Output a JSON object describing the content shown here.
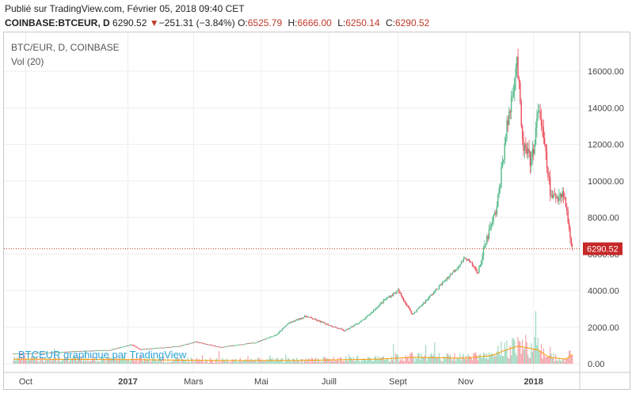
{
  "header": {
    "published": "Publié sur TradingView.com, Février 05, 2018 09:40 CET",
    "symbol": "COINBASE:BTCEUR, D",
    "last": "6290.52",
    "change_icon": "triangle-down-icon",
    "change": "−251.31 (−3.84%)",
    "o_label": "O:",
    "o": "6525.79",
    "h_label": "H:",
    "h": "6666.00",
    "l_label": "L:",
    "l": "6250.14",
    "c_label": "C:",
    "c": "6290.52"
  },
  "legend": {
    "title": "BTC/EUR, D, COINBASE",
    "volume": "Vol (20)"
  },
  "watermark": "BTCEUR graphique par TradingView",
  "colors": {
    "up": "#53b987",
    "down": "#eb4d5c",
    "vol_up": "#9ed9bf",
    "vol_down": "#f3a3aa",
    "ma": "#ff9800",
    "last_line": "#c0392b",
    "last_label_bg": "#c62828",
    "grid": "#eeeeee"
  },
  "chart_data": {
    "type": "candlestick",
    "price_axis_ticks": [
      "16000.00",
      "14000.00",
      "12000.00",
      "10000.00",
      "8000.00",
      "6000.00",
      "4000.00",
      "2000.00",
      "0.00"
    ],
    "price_ylim": [
      0,
      17000
    ],
    "time_axis_ticks": [
      {
        "label": "Oct",
        "bold": false
      },
      {
        "label": "2017",
        "bold": true
      },
      {
        "label": "Mars",
        "bold": false
      },
      {
        "label": "Mai",
        "bold": false
      },
      {
        "label": "Juill",
        "bold": false
      },
      {
        "label": "Sept",
        "bold": false
      },
      {
        "label": "Nov",
        "bold": false
      },
      {
        "label": "2018",
        "bold": true
      }
    ],
    "last_price_label": "6290.52",
    "last_price": 6290.52,
    "price_series": [
      [
        "2016-09-20",
        550
      ],
      [
        "2016-10-15",
        580
      ],
      [
        "2016-11-15",
        680
      ],
      [
        "2016-12-15",
        740
      ],
      [
        "2017-01-04",
        1050
      ],
      [
        "2017-01-12",
        780
      ],
      [
        "2017-02-15",
        950
      ],
      [
        "2017-03-03",
        1200
      ],
      [
        "2017-03-25",
        900
      ],
      [
        "2017-04-25",
        1150
      ],
      [
        "2017-05-15",
        1600
      ],
      [
        "2017-05-25",
        2200
      ],
      [
        "2017-06-10",
        2600
      ],
      [
        "2017-06-25",
        2250
      ],
      [
        "2017-07-15",
        1800
      ],
      [
        "2017-08-01",
        2400
      ],
      [
        "2017-08-20",
        3500
      ],
      [
        "2017-09-01",
        4000
      ],
      [
        "2017-09-14",
        2700
      ],
      [
        "2017-09-30",
        3700
      ],
      [
        "2017-10-20",
        5000
      ],
      [
        "2017-11-01",
        5800
      ],
      [
        "2017-11-12",
        5000
      ],
      [
        "2017-11-20",
        6800
      ],
      [
        "2017-11-29",
        8500
      ],
      [
        "2017-12-07",
        12500
      ],
      [
        "2017-12-11",
        14000
      ],
      [
        "2017-12-17",
        16800
      ],
      [
        "2017-12-22",
        12000
      ],
      [
        "2017-12-30",
        11000
      ],
      [
        "2018-01-06",
        14000
      ],
      [
        "2018-01-17",
        9000
      ],
      [
        "2018-01-28",
        9400
      ],
      [
        "2018-02-05",
        6290
      ]
    ],
    "volume_ma_series": [
      [
        "2016-09-20",
        500
      ],
      [
        "2017-01-05",
        450
      ],
      [
        "2017-03-15",
        350
      ],
      [
        "2017-06-01",
        350
      ],
      [
        "2017-08-15",
        500
      ],
      [
        "2017-09-15",
        700
      ],
      [
        "2017-11-01",
        600
      ],
      [
        "2017-11-25",
        900
      ],
      [
        "2017-12-05",
        1400
      ],
      [
        "2017-12-18",
        1900
      ],
      [
        "2018-01-05",
        1500
      ],
      [
        "2018-01-15",
        700
      ],
      [
        "2018-01-30",
        500
      ],
      [
        "2018-02-05",
        1000
      ]
    ]
  }
}
